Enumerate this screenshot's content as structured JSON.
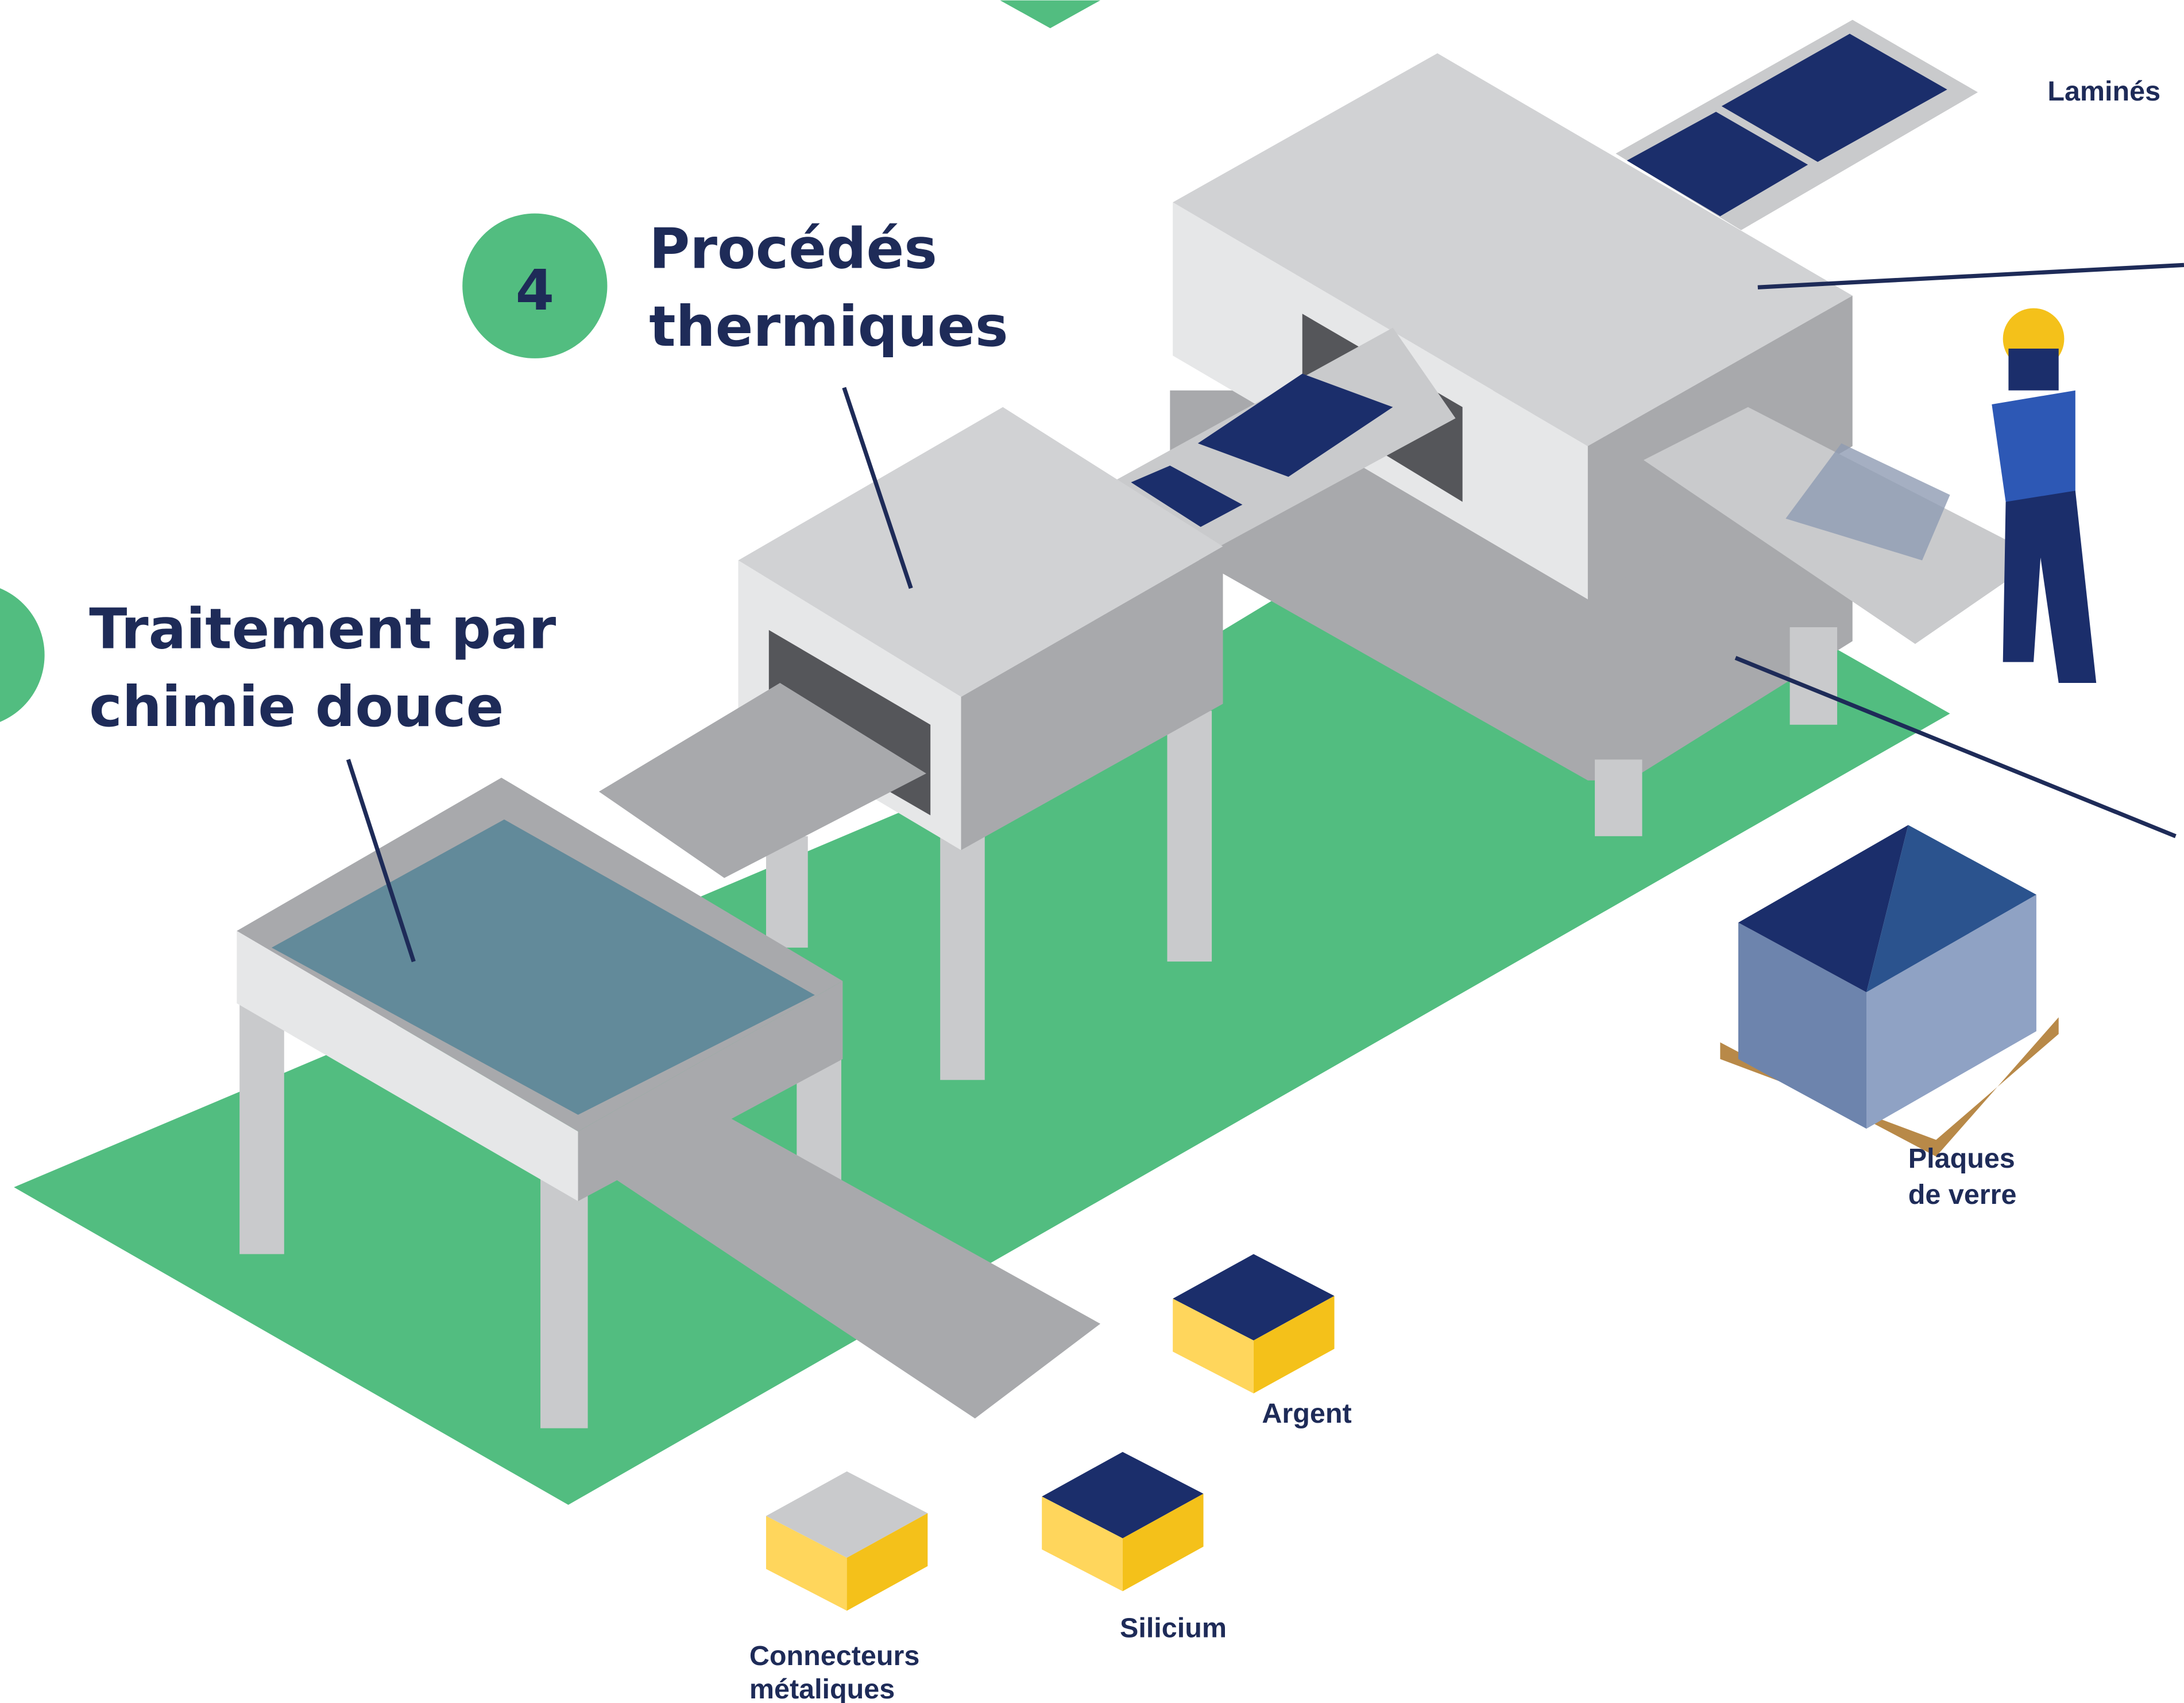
{
  "steps": [
    {
      "number": "4",
      "title_lines": [
        "Procédés",
        "thermiques"
      ]
    },
    {
      "title_lines": [
        "Traitement par",
        "chimie douce"
      ]
    }
  ],
  "labels": {
    "laminates": "Laminés",
    "glass_plates": [
      "Plaques",
      "de verre"
    ],
    "silver": "Argent",
    "silicon": "Silicium",
    "connectors": [
      "Connecteurs",
      "métaliques"
    ]
  }
}
